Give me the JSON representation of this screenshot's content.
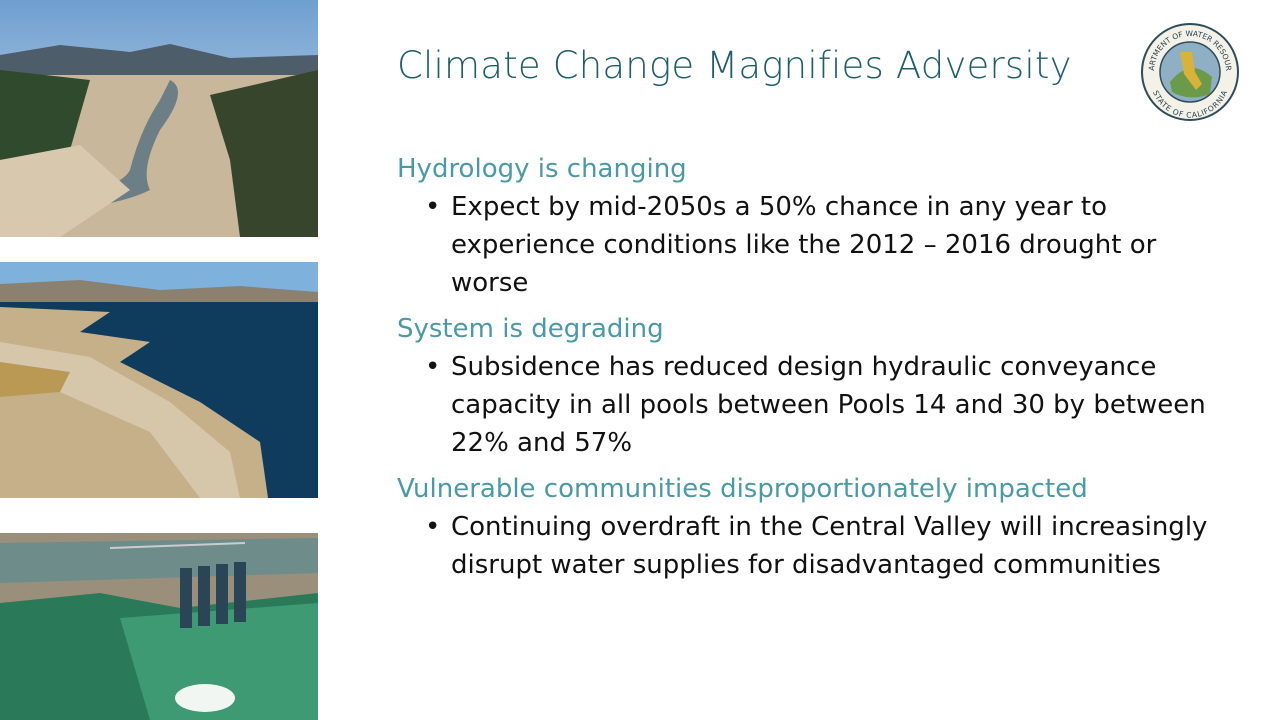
{
  "title": "Climate Change Magnifies Adversity",
  "logo": {
    "top": "DEPARTMENT OF WATER RESOURCES",
    "bottom": "STATE OF CALIFORNIA"
  },
  "sections": [
    {
      "heading": "Hydrology is changing",
      "bullets": [
        "Expect by mid-2050s a 50% chance in any year to experience conditions like the 2012 – 2016 drought or worse"
      ]
    },
    {
      "heading": "System is degrading",
      "bullets": [
        "Subsidence has reduced design hydraulic conveyance capacity in all pools between Pools 14 and 30 by between 22% and 57%"
      ]
    },
    {
      "heading": "Vulnerable communities disproportionately impacted",
      "bullets": [
        "Continuing overdraft in the Central Valley will increasingly disrupt water supplies for disadvantaged communities"
      ]
    }
  ]
}
